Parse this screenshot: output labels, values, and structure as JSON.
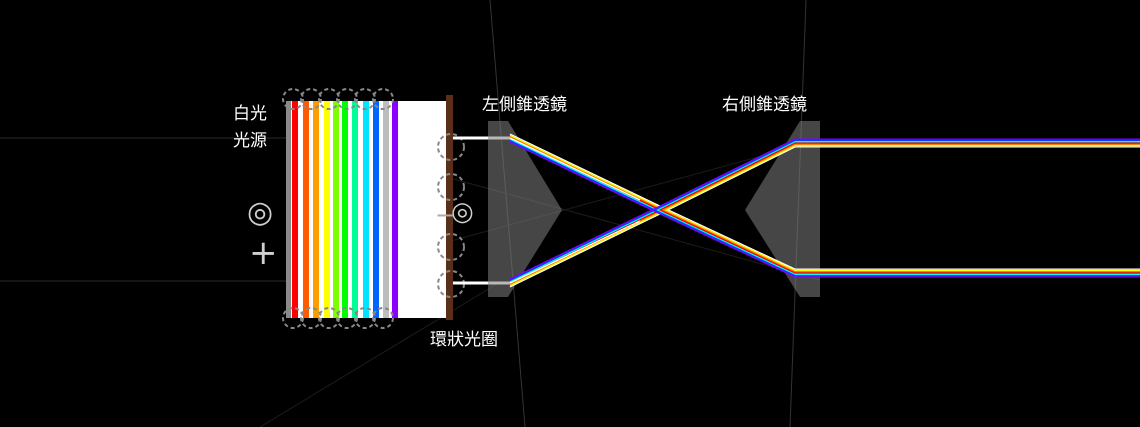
{
  "labels": {
    "source": "白光光源",
    "left_lens": "左側錐透鏡",
    "right_lens": "右側錐透鏡",
    "aperture": "環狀光圈"
  },
  "icons": {
    "source_rotate": "rotate-handle-icon",
    "source_add": "add-icon",
    "aperture_rotate": "rotate-handle-icon",
    "aperture_minus": "minus-icon"
  },
  "colors": {
    "background": "#000000",
    "lens_fill": "#808080",
    "aperture_bar": "#5a2f1a",
    "white_beam": "#ffffff",
    "source_stripes": [
      "#8a8a8a",
      "#ff0000",
      "#ff5a00",
      "#ff9d00",
      "#ffff00",
      "#7dff00",
      "#00ff00",
      "#00ff9a",
      "#00e5ff",
      "#0064ff",
      "#bdbdbd",
      "#8c00ff"
    ],
    "spectrum": [
      "#ffffff",
      "#ffff00",
      "#ff8000",
      "#ff0000",
      "#00ffff",
      "#0040ff",
      "#8000ff"
    ]
  }
}
